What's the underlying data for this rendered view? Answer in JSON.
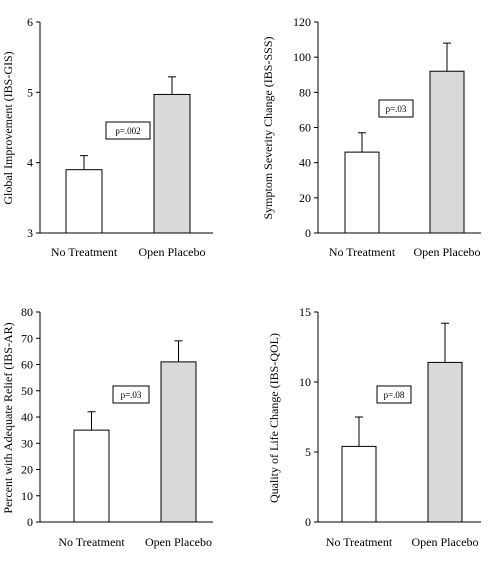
{
  "chart_data": [
    {
      "type": "bar",
      "categories": [
        "No Treatment",
        "Open Placebo"
      ],
      "values": [
        3.9,
        4.97
      ],
      "errors": [
        0.2,
        0.25
      ],
      "ylabel": "Global Improvement (IBS-GIS)",
      "ylim": [
        3,
        6
      ],
      "yticks": [
        3,
        4,
        5,
        6
      ],
      "annotation": "p=.002",
      "colors": [
        "#ffffff",
        "#d9d9d9"
      ]
    },
    {
      "type": "bar",
      "categories": [
        "No Treatment",
        "Open Placebo"
      ],
      "values": [
        46,
        92
      ],
      "errors": [
        11,
        16
      ],
      "ylabel": "Symptom Severity Change (IBS-SSS)",
      "ylim": [
        0,
        120
      ],
      "yticks": [
        0,
        20,
        40,
        60,
        80,
        100,
        120
      ],
      "annotation": "p=.03",
      "colors": [
        "#ffffff",
        "#d9d9d9"
      ]
    },
    {
      "type": "bar",
      "categories": [
        "No Treatment",
        "Open Placebo"
      ],
      "values": [
        35,
        61
      ],
      "errors": [
        7,
        8
      ],
      "ylabel": "Percent with Adequate Relief (IBS-AR)",
      "ylim": [
        0,
        80
      ],
      "yticks": [
        0,
        10,
        20,
        30,
        40,
        50,
        60,
        70,
        80
      ],
      "annotation": "p=.03",
      "colors": [
        "#ffffff",
        "#d9d9d9"
      ]
    },
    {
      "type": "bar",
      "categories": [
        "No Treatment",
        "Open Placebo"
      ],
      "values": [
        5.4,
        11.4
      ],
      "errors": [
        2.1,
        2.8
      ],
      "ylabel": "Quality of Life Change (IBS-QOL)",
      "ylim": [
        0,
        15
      ],
      "yticks": [
        0,
        5,
        10,
        15
      ],
      "annotation": "p=.08",
      "colors": [
        "#ffffff",
        "#d9d9d9"
      ]
    }
  ]
}
